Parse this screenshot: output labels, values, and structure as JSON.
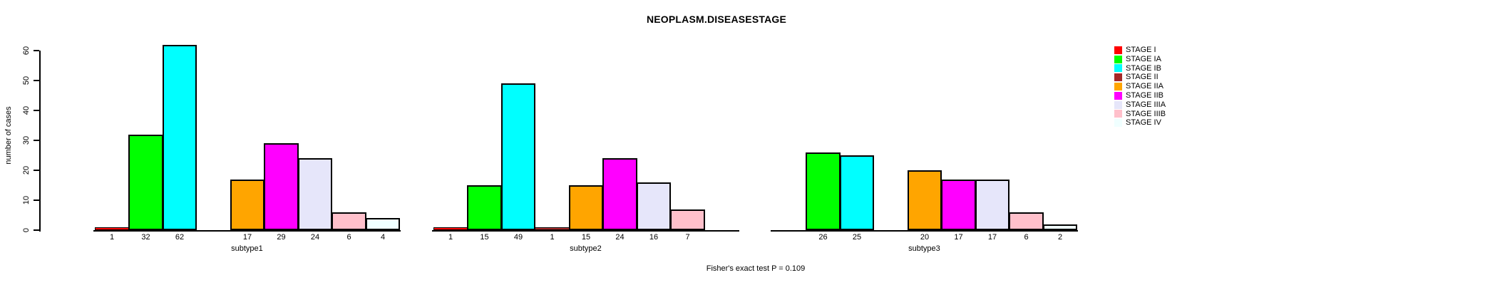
{
  "chart_data": {
    "type": "bar",
    "title": "NEOPLASM.DISEASESTAGE",
    "categories": [
      "subtype1",
      "subtype2",
      "subtype3"
    ],
    "series": [
      {
        "name": "STAGE I",
        "color": "#FF0000",
        "values": [
          1,
          1,
          0
        ]
      },
      {
        "name": "STAGE IA",
        "color": "#00FF00",
        "values": [
          32,
          15,
          26
        ]
      },
      {
        "name": "STAGE IB",
        "color": "#00FFFF",
        "values": [
          62,
          49,
          25
        ]
      },
      {
        "name": "STAGE II",
        "color": "#A52A2A",
        "values": [
          0,
          1,
          0
        ]
      },
      {
        "name": "STAGE IIA",
        "color": "#FFA500",
        "values": [
          17,
          15,
          20
        ]
      },
      {
        "name": "STAGE IIB",
        "color": "#FF00FF",
        "values": [
          29,
          24,
          17
        ]
      },
      {
        "name": "STAGE IIIA",
        "color": "#E6E6FA",
        "values": [
          24,
          16,
          17
        ]
      },
      {
        "name": "STAGE IIIB",
        "color": "#FFC0CB",
        "values": [
          6,
          7,
          6
        ]
      },
      {
        "name": "STAGE IV",
        "color": "#F0FFFF",
        "values": [
          4,
          0,
          2
        ]
      }
    ],
    "xlabel": "",
    "ylabel": "number of cases",
    "yticks": [
      0,
      10,
      20,
      30,
      40,
      50,
      60
    ],
    "ylim": [
      0,
      63
    ],
    "grid": false,
    "legend_position": "right",
    "bar_value_labels": true,
    "annotation": "Fisher's exact test P = 0.109"
  }
}
